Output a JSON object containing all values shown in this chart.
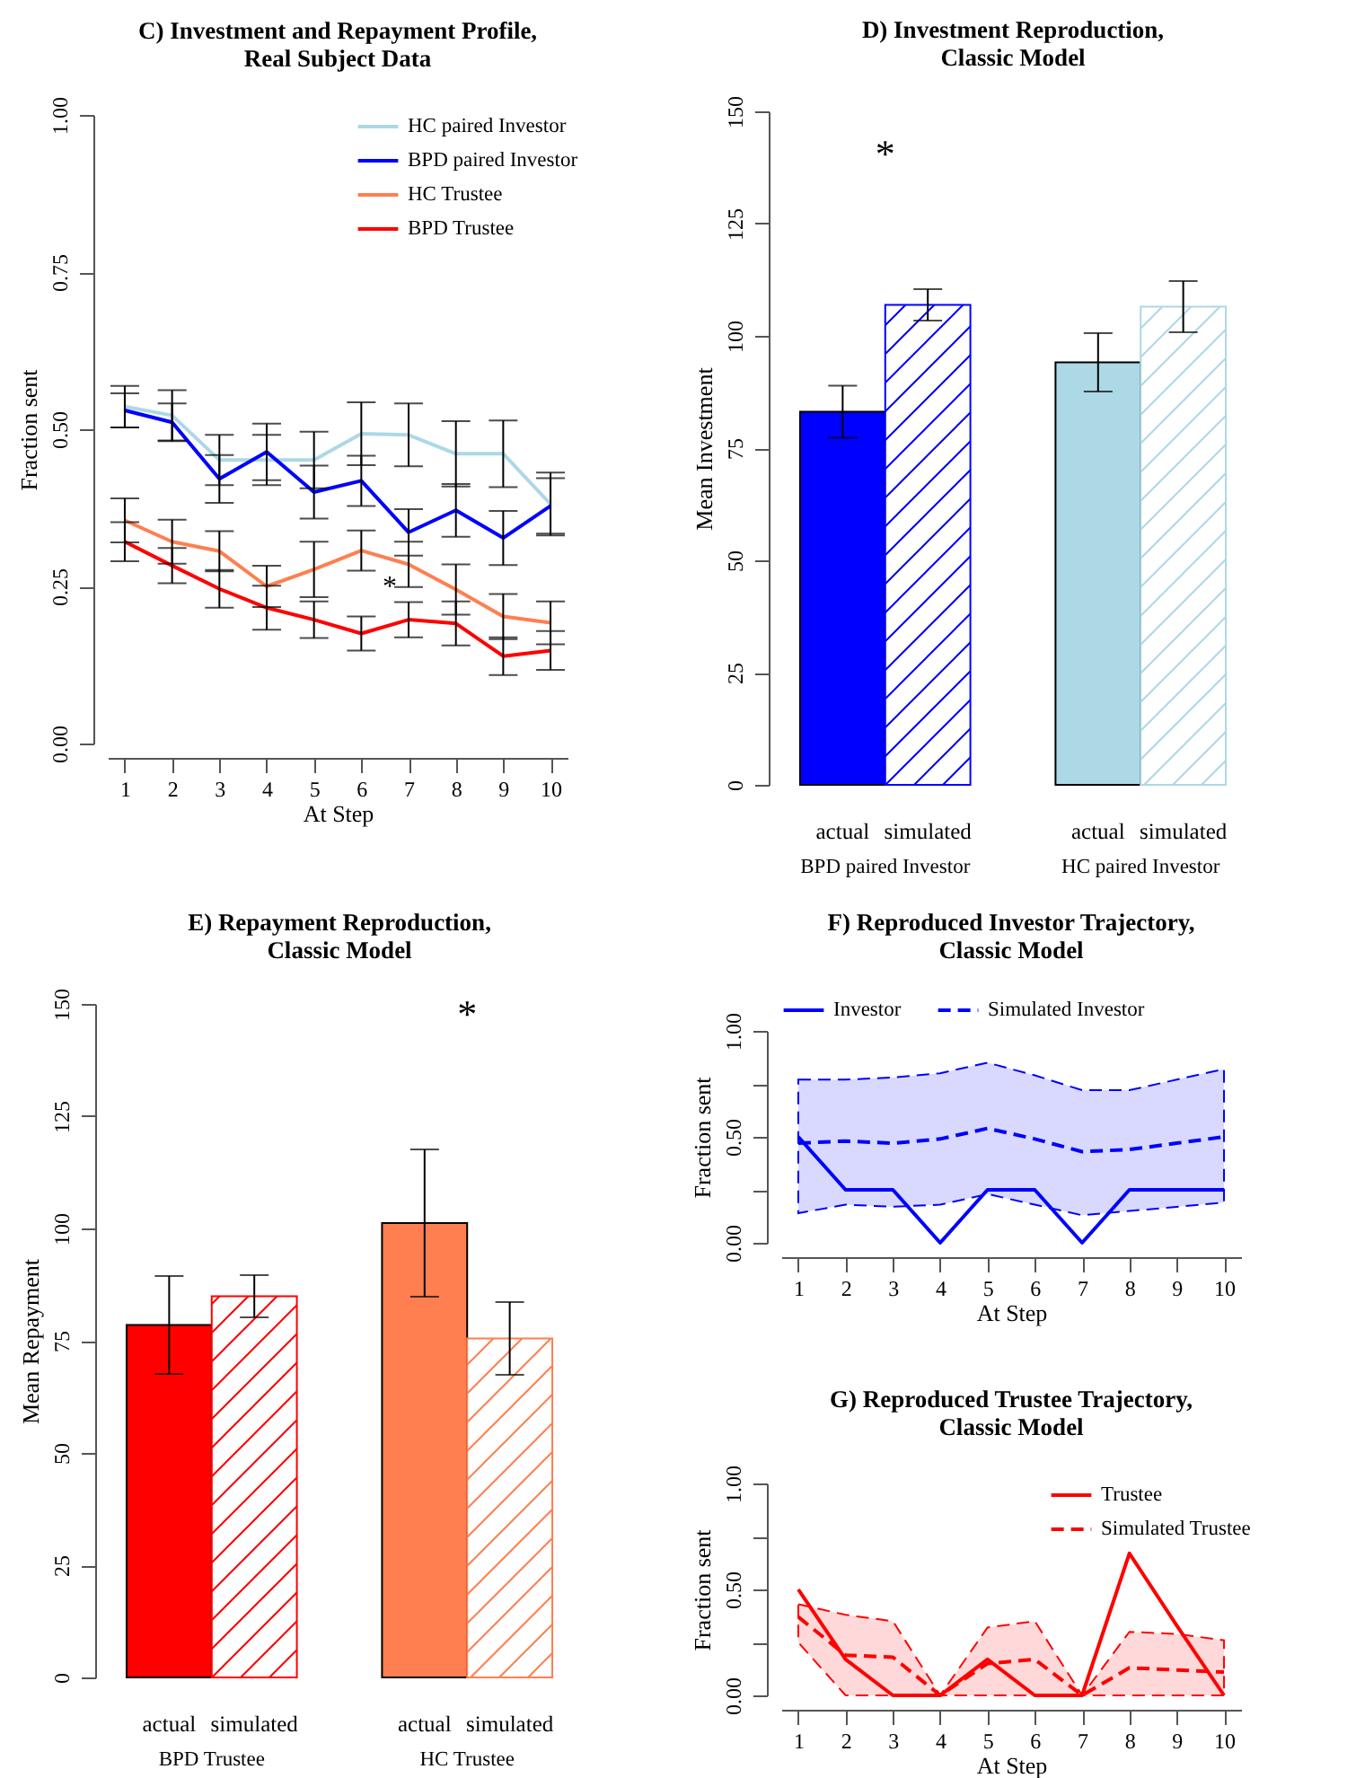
{
  "chart_data": [
    {
      "type": "line",
      "title": "C) Investment and Repayment Profile, Real Subject Data",
      "xlabel": "At Step",
      "ylabel": "Fraction sent",
      "x": [
        1,
        2,
        3,
        4,
        5,
        6,
        7,
        8,
        9,
        10
      ],
      "series": [
        {
          "name": "HC paired Investor",
          "color": "#add8e6",
          "values": [
            0.536,
            0.522,
            0.451,
            0.451,
            0.451,
            0.493,
            0.491,
            0.461,
            0.461,
            0.381
          ],
          "errors": [
            0.033,
            0.04,
            0.04,
            0.04,
            0.045,
            0.05,
            0.05,
            0.052,
            0.053,
            0.05
          ]
        },
        {
          "name": "BPD paired Investor",
          "color": "#0000ff",
          "values": [
            0.53,
            0.511,
            0.421,
            0.464,
            0.4,
            0.418,
            0.336,
            0.371,
            0.327,
            0.378
          ],
          "errors": [
            0.027,
            0.03,
            0.038,
            0.045,
            0.042,
            0.04,
            0.037,
            0.042,
            0.043,
            0.044
          ]
        },
        {
          "name": "HC Trustee",
          "color": "#ff7f50",
          "values": [
            0.355,
            0.321,
            0.306,
            0.25,
            0.277,
            0.307,
            0.285,
            0.245,
            0.202,
            0.192
          ],
          "errors": [
            0.035,
            0.035,
            0.032,
            0.033,
            0.044,
            0.032,
            0.036,
            0.04,
            0.036,
            0.034
          ]
        },
        {
          "name": "BPD Trustee",
          "color": "#ff0000",
          "values": [
            0.321,
            0.283,
            0.246,
            0.216,
            0.197,
            0.175,
            0.197,
            0.191,
            0.139,
            0.148
          ],
          "errors": [
            0.031,
            0.028,
            0.03,
            0.035,
            0.029,
            0.027,
            0.028,
            0.035,
            0.03,
            0.031
          ]
        }
      ],
      "xlim": [
        0.64,
        10.36
      ],
      "xticks": [
        1,
        2,
        3,
        4,
        5,
        6,
        7,
        8,
        9,
        10
      ],
      "ylim": [
        0,
        1
      ],
      "yticks": [
        {
          "value": 0,
          "label": "0.00"
        },
        0.25,
        {
          "value": 0.5,
          "label": "0.50"
        },
        0.75,
        {
          "value": 1,
          "label": "1.00"
        }
      ],
      "legend": "top right",
      "annotations": [
        {
          "text": "*",
          "x": 6.6,
          "y": 0.25
        }
      ]
    },
    {
      "type": "bar",
      "title": "D) Investment Reproduction, Classic Model",
      "ylabel": "Mean Investment",
      "categories": [
        "BPD paired Investor",
        "HC paired Investor"
      ],
      "series": [
        {
          "name": "actual",
          "colors": [
            "#0000ff",
            "#add8e6"
          ],
          "values": [
            83.1,
            94.1
          ],
          "errors": [
            5.8,
            6.5
          ]
        },
        {
          "name": "simulated",
          "colors": [
            "#0000ff",
            "#add8e6"
          ],
          "values": [
            106.9,
            106.5
          ],
          "errors": [
            3.5,
            5.7
          ]
        }
      ],
      "ylim": [
        0,
        150
      ],
      "yticks": [
        0,
        25,
        50,
        75,
        100,
        125,
        150
      ],
      "annotations": [
        "*"
      ]
    },
    {
      "type": "bar",
      "title": "E) Repayment Reproduction, Classic Model",
      "ylabel": "Mean Repayment",
      "categories": [
        "BPD Trustee",
        "HC Trustee"
      ],
      "series": [
        {
          "name": "actual",
          "colors": [
            "#ff0000",
            "#ff7f50"
          ],
          "values": [
            78.5,
            101.2
          ],
          "errors": [
            10.9,
            16.4
          ]
        },
        {
          "name": "simulated",
          "colors": [
            "#ff0000",
            "#ff7f50"
          ],
          "values": [
            84.9,
            75.5
          ],
          "errors": [
            4.7,
            8.1
          ]
        }
      ],
      "ylim": [
        0,
        150
      ],
      "yticks": [
        0,
        25,
        50,
        75,
        100,
        125,
        150
      ],
      "annotations": [
        "*"
      ]
    },
    {
      "type": "line",
      "title": "F) Reproduced Investor Trajectory, Classic Model",
      "xlabel": "At Step",
      "ylabel": "Fraction sent",
      "x": [
        1,
        2,
        3,
        4,
        5,
        6,
        7,
        8,
        9,
        10
      ],
      "series": [
        {
          "name": "Investor",
          "color": "#0000ff",
          "line_style": "solid",
          "values": [
            0.5,
            0.25,
            0.25,
            0,
            0.25,
            0.25,
            0,
            0.25,
            0.25,
            0.25
          ]
        },
        {
          "name": "Simulated Investor",
          "color": "#0000ff",
          "line_style": "dashed",
          "values": [
            0.47,
            0.48,
            0.47,
            0.49,
            0.54,
            0.49,
            0.43,
            0.44,
            0.47,
            0.5
          ],
          "lower": [
            0.14,
            0.18,
            0.17,
            0.18,
            0.23,
            0.18,
            0.13,
            0.15,
            0.17,
            0.19
          ],
          "upper": [
            0.77,
            0.77,
            0.78,
            0.8,
            0.85,
            0.79,
            0.72,
            0.72,
            0.77,
            0.82
          ]
        }
      ],
      "xlim": [
        0.64,
        10.36
      ],
      "xticks": [
        1,
        2,
        3,
        4,
        5,
        6,
        7,
        8,
        9,
        10
      ],
      "ylim": [
        0,
        1
      ],
      "yticks": [
        {
          "value": 0,
          "label": "0.00"
        },
        {
          "value": 0.25,
          "label": null
        },
        {
          "value": 0.5,
          "label": "0.50"
        },
        {
          "value": 0.75,
          "label": null
        },
        {
          "value": 1,
          "label": "1.00"
        }
      ],
      "legend": "top"
    },
    {
      "type": "line",
      "title": "G) Reproduced Trustee Trajectory, Classic Model",
      "xlabel": "At Step",
      "ylabel": "Fraction sent",
      "x": [
        1,
        2,
        3,
        4,
        5,
        6,
        7,
        8,
        9,
        10
      ],
      "series": [
        {
          "name": "Trustee",
          "color": "#ff0000",
          "line_style": "solid",
          "values": [
            0.5,
            0.17,
            0,
            0,
            0.17,
            0,
            0,
            0.67,
            0.33,
            0
          ]
        },
        {
          "name": "Simulated Trustee",
          "color": "#ff0000",
          "line_style": "dashed",
          "values": [
            0.37,
            0.19,
            0.18,
            0,
            0.15,
            0.17,
            0,
            0.13,
            0.12,
            0.11
          ],
          "lower": [
            0.25,
            0,
            0,
            0,
            0,
            0,
            0,
            0,
            0,
            0
          ],
          "upper": [
            0.43,
            0.38,
            0.35,
            0,
            0.32,
            0.35,
            0,
            0.3,
            0.29,
            0.26
          ]
        }
      ],
      "xlim": [
        0.64,
        10.36
      ],
      "xticks": [
        1,
        2,
        3,
        4,
        5,
        6,
        7,
        8,
        9,
        10
      ],
      "ylim": [
        0,
        1
      ],
      "yticks": [
        {
          "value": 0,
          "label": "0.00"
        },
        {
          "value": 0.25,
          "label": null
        },
        {
          "value": 0.5,
          "label": "0.50"
        },
        {
          "value": 0.75,
          "label": null
        },
        {
          "value": 1,
          "label": "1.00"
        }
      ],
      "legend": "top right"
    }
  ]
}
